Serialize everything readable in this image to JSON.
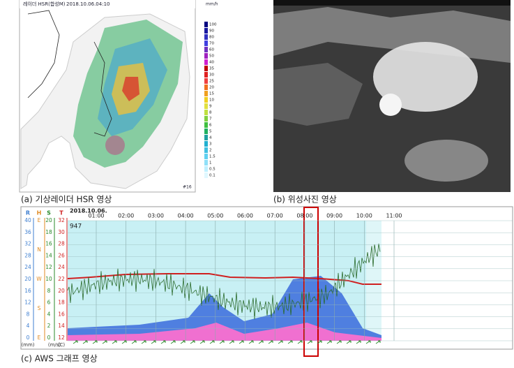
{
  "panels": {
    "radar": {
      "header": "레이더 HSR(합성M)",
      "timestamp": "2018.10.06.04:10",
      "unit": "mm/h",
      "legend": [
        "100",
        "90",
        "80",
        "70",
        "60",
        "50",
        "40",
        "35",
        "30",
        "25",
        "20",
        "15",
        "10",
        "9",
        "8",
        "7",
        "6",
        "5",
        "4",
        "3",
        "2",
        "1.5",
        "1",
        "0.5",
        "0.1"
      ],
      "frame": "#16",
      "caption": "(a) 기상레이더 HSR 영상"
    },
    "satellite": {
      "caption": "(b) 위성사진 영상"
    },
    "aws": {
      "date": "2018.10.06.",
      "station": "947",
      "times": [
        "01:00",
        "02:00",
        "03:00",
        "04:00",
        "05:00",
        "06:00",
        "07:00",
        "08:00",
        "09:00",
        "10:00",
        "11:00"
      ],
      "axes": [
        {
          "name": "R",
          "unit": "(mm)",
          "color": "#3f7fd0",
          "ticks": [
            "40",
            "36",
            "32",
            "28",
            "24",
            "20",
            "16",
            "12",
            "8",
            "4",
            "0"
          ]
        },
        {
          "name": "H",
          "unit": "",
          "color": "#e08a20",
          "ticks": [
            "E",
            "N",
            "W",
            "S",
            "E"
          ]
        },
        {
          "name": "S",
          "unit": "(m/s)",
          "color": "#2a8a2a",
          "ticks": [
            "20",
            "18",
            "16",
            "14",
            "12",
            "10",
            "8",
            "6",
            "4",
            "2",
            "0"
          ]
        },
        {
          "name": "T",
          "unit": "(C)",
          "color": "#d02020",
          "ticks": [
            "32",
            "30",
            "28",
            "26",
            "24",
            "22",
            "20",
            "18",
            "16",
            "14",
            "12"
          ]
        }
      ],
      "caption": "(c) AWS 그래프 영상"
    }
  }
}
